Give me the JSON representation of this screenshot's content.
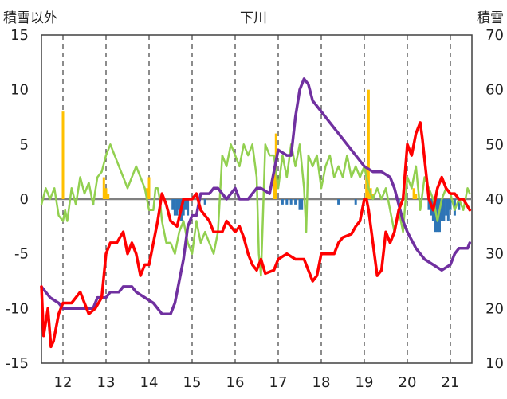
{
  "chart_data": {
    "type": "line",
    "title": "下川",
    "left_axis": {
      "label": "積雪以外",
      "range": [
        -15,
        15
      ],
      "ticks": [
        15,
        10,
        5,
        0,
        -5,
        -10,
        -15
      ]
    },
    "right_axis": {
      "label": "積雪",
      "range": [
        10,
        70
      ],
      "ticks": [
        70,
        60,
        50,
        40,
        30,
        20,
        10
      ]
    },
    "x_axis": {
      "range": [
        11.5,
        21.5
      ],
      "ticks": [
        12,
        13,
        14,
        15,
        16,
        17,
        18,
        19,
        20,
        21
      ]
    },
    "grid": {
      "vertical_dashed": true,
      "horizontal": false,
      "zero_line": true
    },
    "colors": {
      "red": "#ff0000",
      "purple": "#7030a0",
      "green": "#92d050",
      "orange_bars": "#ffc000",
      "blue_bars": "#2e75b6",
      "zero_line": "#808080",
      "grid": "#404040"
    },
    "series": [
      {
        "color": "red",
        "axis": "left",
        "kind": "line",
        "points": [
          [
            11.5,
            -8
          ],
          [
            11.55,
            -12.5
          ],
          [
            11.65,
            -10
          ],
          [
            11.72,
            -13.5
          ],
          [
            11.78,
            -13
          ],
          [
            11.9,
            -10.5
          ],
          [
            12,
            -9.5
          ],
          [
            12.2,
            -9.5
          ],
          [
            12.4,
            -8.5
          ],
          [
            12.5,
            -9.5
          ],
          [
            12.6,
            -10.5
          ],
          [
            12.75,
            -10
          ],
          [
            12.9,
            -9
          ],
          [
            13,
            -5
          ],
          [
            13.1,
            -4
          ],
          [
            13.25,
            -4
          ],
          [
            13.4,
            -3
          ],
          [
            13.5,
            -5
          ],
          [
            13.6,
            -4
          ],
          [
            13.7,
            -5
          ],
          [
            13.8,
            -7
          ],
          [
            13.9,
            -6
          ],
          [
            14,
            -6
          ],
          [
            14.1,
            -4
          ],
          [
            14.2,
            -2
          ],
          [
            14.3,
            0.5
          ],
          [
            14.4,
            -0.5
          ],
          [
            14.5,
            -2
          ],
          [
            14.65,
            -2.5
          ],
          [
            14.8,
            0
          ],
          [
            15,
            0
          ],
          [
            15.1,
            0.5
          ],
          [
            15.2,
            -1
          ],
          [
            15.4,
            -2
          ],
          [
            15.5,
            -3
          ],
          [
            15.7,
            -3
          ],
          [
            15.8,
            -2
          ],
          [
            16,
            -3
          ],
          [
            16.1,
            -2.5
          ],
          [
            16.2,
            -3.5
          ],
          [
            16.3,
            -5
          ],
          [
            16.4,
            -6
          ],
          [
            16.5,
            -6.5
          ],
          [
            16.6,
            -5.5
          ],
          [
            16.7,
            -6.8
          ],
          [
            16.9,
            -6.5
          ],
          [
            17,
            -5.5
          ],
          [
            17.2,
            -5
          ],
          [
            17.4,
            -5.5
          ],
          [
            17.5,
            -5.5
          ],
          [
            17.6,
            -5.5
          ],
          [
            17.7,
            -6.5
          ],
          [
            17.8,
            -7.5
          ],
          [
            17.9,
            -7
          ],
          [
            18,
            -5
          ],
          [
            18.2,
            -5
          ],
          [
            18.3,
            -5
          ],
          [
            18.4,
            -4
          ],
          [
            18.5,
            -3.5
          ],
          [
            18.7,
            -3.2
          ],
          [
            18.8,
            -2.5
          ],
          [
            18.9,
            -2
          ],
          [
            19,
            0
          ],
          [
            19.05,
            0
          ],
          [
            19.1,
            -1
          ],
          [
            19.2,
            -4
          ],
          [
            19.3,
            -7
          ],
          [
            19.4,
            -6.5
          ],
          [
            19.5,
            -3
          ],
          [
            19.6,
            -4
          ],
          [
            19.7,
            -3
          ],
          [
            19.8,
            -1
          ],
          [
            19.9,
            0
          ],
          [
            20,
            5
          ],
          [
            20.1,
            4
          ],
          [
            20.2,
            6
          ],
          [
            20.3,
            7
          ],
          [
            20.35,
            5.5
          ],
          [
            20.5,
            0
          ],
          [
            20.6,
            -1
          ],
          [
            20.7,
            1
          ],
          [
            20.8,
            2
          ],
          [
            20.9,
            1
          ],
          [
            21,
            0.5
          ],
          [
            21.1,
            0.5
          ],
          [
            21.2,
            0
          ],
          [
            21.3,
            0
          ],
          [
            21.45,
            -1
          ]
        ]
      },
      {
        "color": "purple",
        "axis": "right",
        "kind": "line",
        "points": [
          [
            11.5,
            24
          ],
          [
            11.7,
            22
          ],
          [
            11.9,
            21
          ],
          [
            12,
            20
          ],
          [
            12.2,
            20
          ],
          [
            12.5,
            20
          ],
          [
            12.7,
            20
          ],
          [
            12.8,
            22
          ],
          [
            13,
            22
          ],
          [
            13.1,
            23
          ],
          [
            13.3,
            23
          ],
          [
            13.4,
            24
          ],
          [
            13.6,
            24
          ],
          [
            13.7,
            23
          ],
          [
            13.9,
            22
          ],
          [
            14.1,
            21
          ],
          [
            14.2,
            20
          ],
          [
            14.3,
            19
          ],
          [
            14.5,
            19
          ],
          [
            14.6,
            21
          ],
          [
            14.7,
            25
          ],
          [
            14.8,
            29
          ],
          [
            14.9,
            35
          ],
          [
            15,
            37
          ],
          [
            15.1,
            37
          ],
          [
            15.2,
            41
          ],
          [
            15.4,
            41
          ],
          [
            15.5,
            42
          ],
          [
            15.6,
            42
          ],
          [
            15.8,
            40
          ],
          [
            16,
            42
          ],
          [
            16.1,
            40
          ],
          [
            16.3,
            40
          ],
          [
            16.4,
            41
          ],
          [
            16.5,
            42
          ],
          [
            16.6,
            42
          ],
          [
            16.8,
            41
          ],
          [
            17,
            49
          ],
          [
            17.2,
            48
          ],
          [
            17.3,
            48
          ],
          [
            17.4,
            55
          ],
          [
            17.5,
            60
          ],
          [
            17.6,
            62
          ],
          [
            17.7,
            61
          ],
          [
            17.8,
            58
          ],
          [
            18,
            56
          ],
          [
            18.2,
            54
          ],
          [
            18.4,
            52
          ],
          [
            18.6,
            50
          ],
          [
            18.8,
            48
          ],
          [
            19,
            46
          ],
          [
            19.2,
            45
          ],
          [
            19.4,
            45
          ],
          [
            19.6,
            44
          ],
          [
            19.7,
            42
          ],
          [
            19.8,
            39
          ],
          [
            19.9,
            36
          ],
          [
            20,
            34
          ],
          [
            20.2,
            31
          ],
          [
            20.4,
            29
          ],
          [
            20.6,
            28
          ],
          [
            20.8,
            27
          ],
          [
            21,
            28
          ],
          [
            21.1,
            30
          ],
          [
            21.2,
            31
          ],
          [
            21.4,
            31
          ],
          [
            21.45,
            32
          ]
        ]
      },
      {
        "color": "green",
        "axis": "left",
        "kind": "line",
        "points": [
          [
            11.5,
            -0.5
          ],
          [
            11.6,
            1
          ],
          [
            11.7,
            0
          ],
          [
            11.8,
            1
          ],
          [
            11.9,
            -1.5
          ],
          [
            12,
            -2
          ],
          [
            12.05,
            -1
          ],
          [
            12.1,
            -2
          ],
          [
            12.2,
            1
          ],
          [
            12.3,
            -0.5
          ],
          [
            12.4,
            2
          ],
          [
            12.5,
            0.5
          ],
          [
            12.6,
            1.5
          ],
          [
            12.7,
            -0.5
          ],
          [
            12.8,
            2
          ],
          [
            12.9,
            2.5
          ],
          [
            13,
            4
          ],
          [
            13.1,
            5
          ],
          [
            13.2,
            4
          ],
          [
            13.3,
            3
          ],
          [
            13.4,
            2
          ],
          [
            13.5,
            1
          ],
          [
            13.6,
            2
          ],
          [
            13.7,
            3
          ],
          [
            13.8,
            2
          ],
          [
            13.9,
            1
          ],
          [
            14,
            -1
          ],
          [
            14.1,
            -1
          ],
          [
            14.15,
            1
          ],
          [
            14.2,
            1
          ],
          [
            14.25,
            0
          ],
          [
            14.3,
            -2
          ],
          [
            14.4,
            -4
          ],
          [
            14.5,
            -4
          ],
          [
            14.6,
            -5
          ],
          [
            14.7,
            -3
          ],
          [
            14.8,
            -2
          ],
          [
            14.9,
            -4
          ],
          [
            15,
            -5
          ],
          [
            15.1,
            -2
          ],
          [
            15.2,
            -4
          ],
          [
            15.3,
            -3
          ],
          [
            15.4,
            -4
          ],
          [
            15.5,
            -5
          ],
          [
            15.6,
            -3
          ],
          [
            15.7,
            4
          ],
          [
            15.8,
            3
          ],
          [
            15.9,
            5
          ],
          [
            16,
            4
          ],
          [
            16.1,
            3
          ],
          [
            16.2,
            5
          ],
          [
            16.3,
            4
          ],
          [
            16.4,
            5
          ],
          [
            16.5,
            2
          ],
          [
            16.55,
            -5
          ],
          [
            16.6,
            -7
          ],
          [
            16.7,
            5
          ],
          [
            16.8,
            4
          ],
          [
            16.9,
            4
          ],
          [
            17,
            1
          ],
          [
            17.1,
            4
          ],
          [
            17.2,
            2
          ],
          [
            17.3,
            5
          ],
          [
            17.4,
            3
          ],
          [
            17.5,
            5
          ],
          [
            17.6,
            1
          ],
          [
            17.65,
            -3
          ],
          [
            17.7,
            4
          ],
          [
            17.8,
            3
          ],
          [
            17.9,
            4
          ],
          [
            18,
            1
          ],
          [
            18.1,
            3
          ],
          [
            18.2,
            4
          ],
          [
            18.3,
            2
          ],
          [
            18.4,
            3
          ],
          [
            18.5,
            2
          ],
          [
            18.6,
            4
          ],
          [
            18.7,
            2
          ],
          [
            18.8,
            3
          ],
          [
            18.9,
            2
          ],
          [
            19,
            3
          ],
          [
            19.1,
            1
          ],
          [
            19.2,
            0
          ],
          [
            19.3,
            1
          ],
          [
            19.4,
            0
          ],
          [
            19.5,
            1
          ],
          [
            19.6,
            -1
          ],
          [
            19.7,
            -3
          ],
          [
            19.8,
            -1
          ],
          [
            19.9,
            -3
          ],
          [
            20,
            2
          ],
          [
            20.1,
            1
          ],
          [
            20.2,
            3
          ],
          [
            20.3,
            -1
          ],
          [
            20.4,
            2
          ],
          [
            20.5,
            1
          ],
          [
            20.6,
            0
          ],
          [
            20.7,
            -2
          ],
          [
            20.8,
            0
          ],
          [
            20.9,
            1
          ],
          [
            21,
            0.5
          ],
          [
            21.1,
            -1
          ],
          [
            21.2,
            0
          ],
          [
            21.3,
            -1
          ],
          [
            21.4,
            1
          ],
          [
            21.45,
            0.5
          ]
        ]
      }
    ],
    "orange_bars": [
      [
        12,
        8
      ],
      [
        12.95,
        2
      ],
      [
        13,
        1
      ],
      [
        13.05,
        0.5
      ],
      [
        13.95,
        1
      ],
      [
        14,
        2
      ],
      [
        16.9,
        3
      ],
      [
        16.95,
        6
      ],
      [
        19.05,
        3
      ],
      [
        19.1,
        10
      ],
      [
        19.15,
        1
      ],
      [
        19.2,
        0.5
      ],
      [
        20.15,
        1
      ],
      [
        20.2,
        0.5
      ]
    ],
    "blue_bars": [
      [
        12.7,
        -0.5
      ],
      [
        14.55,
        -1
      ],
      [
        14.6,
        -1.5
      ],
      [
        14.65,
        -1.5
      ],
      [
        14.7,
        -1
      ],
      [
        14.75,
        -2
      ],
      [
        14.8,
        -1.5
      ],
      [
        14.85,
        -1
      ],
      [
        14.9,
        -1.5
      ],
      [
        15.3,
        -0.5
      ],
      [
        17.1,
        -0.5
      ],
      [
        17.2,
        -0.5
      ],
      [
        17.3,
        -0.5
      ],
      [
        17.4,
        -0.5
      ],
      [
        17.5,
        -1
      ],
      [
        17.55,
        -1
      ],
      [
        18.4,
        -0.5
      ],
      [
        18.8,
        -0.5
      ],
      [
        19.8,
        -0.5
      ],
      [
        20.5,
        -1
      ],
      [
        20.55,
        -1.5
      ],
      [
        20.6,
        -2
      ],
      [
        20.65,
        -3
      ],
      [
        20.7,
        -3
      ],
      [
        20.75,
        -3
      ],
      [
        20.8,
        -2
      ],
      [
        20.85,
        -2
      ],
      [
        20.9,
        -1.5
      ],
      [
        20.95,
        -2
      ],
      [
        21,
        -1
      ],
      [
        21.1,
        -1.5
      ],
      [
        21.2,
        -1
      ]
    ]
  }
}
